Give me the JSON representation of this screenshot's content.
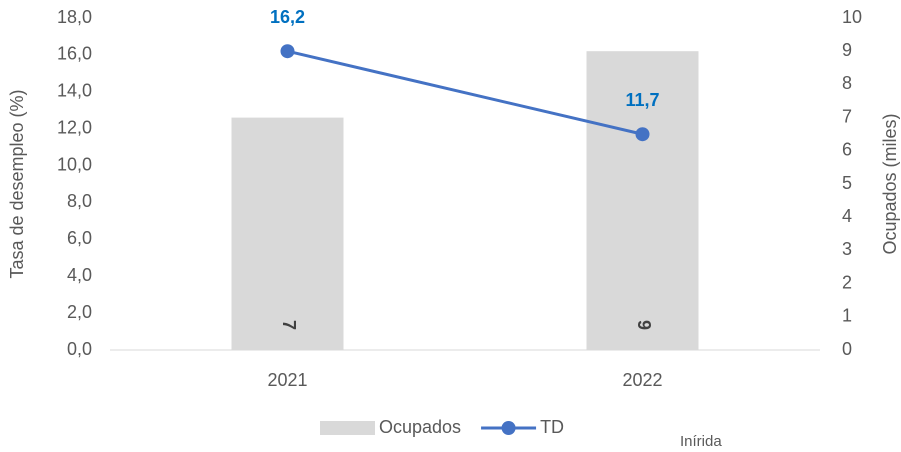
{
  "chart_data": {
    "type": "combo",
    "categories": [
      "2021",
      "2022"
    ],
    "series": [
      {
        "name": "Ocupados",
        "type": "bar",
        "axis": "y2",
        "color": "#d9d9d9",
        "values": [
          7,
          9
        ]
      },
      {
        "name": "TD",
        "type": "line",
        "axis": "y",
        "color": "#4472c4",
        "label_color": "#0070c0",
        "values": [
          16.2,
          11.7
        ],
        "value_labels": [
          "16,2",
          "11,7"
        ]
      }
    ],
    "ylabel": "Tasa de desempleo (%)",
    "y2label": "Ocupados (miles)",
    "ylim": [
      0,
      18
    ],
    "yticks": [
      {
        "value": 0,
        "label": "0,0"
      },
      {
        "value": 2,
        "label": "2,0"
      },
      {
        "value": 4,
        "label": "4,0"
      },
      {
        "value": 6,
        "label": "6,0"
      },
      {
        "value": 8,
        "label": "8,0"
      },
      {
        "value": 10,
        "label": "10,0"
      },
      {
        "value": 12,
        "label": "12,0"
      },
      {
        "value": 14,
        "label": "14,0"
      },
      {
        "value": 16,
        "label": "16,0"
      },
      {
        "value": 18,
        "label": "18,0"
      }
    ],
    "y2lim": [
      0,
      10
    ],
    "y2ticks": [
      0,
      1,
      2,
      3,
      4,
      5,
      6,
      7,
      8,
      9,
      10
    ],
    "annotation": "Inírida",
    "grid": false,
    "legend": "bottom"
  }
}
